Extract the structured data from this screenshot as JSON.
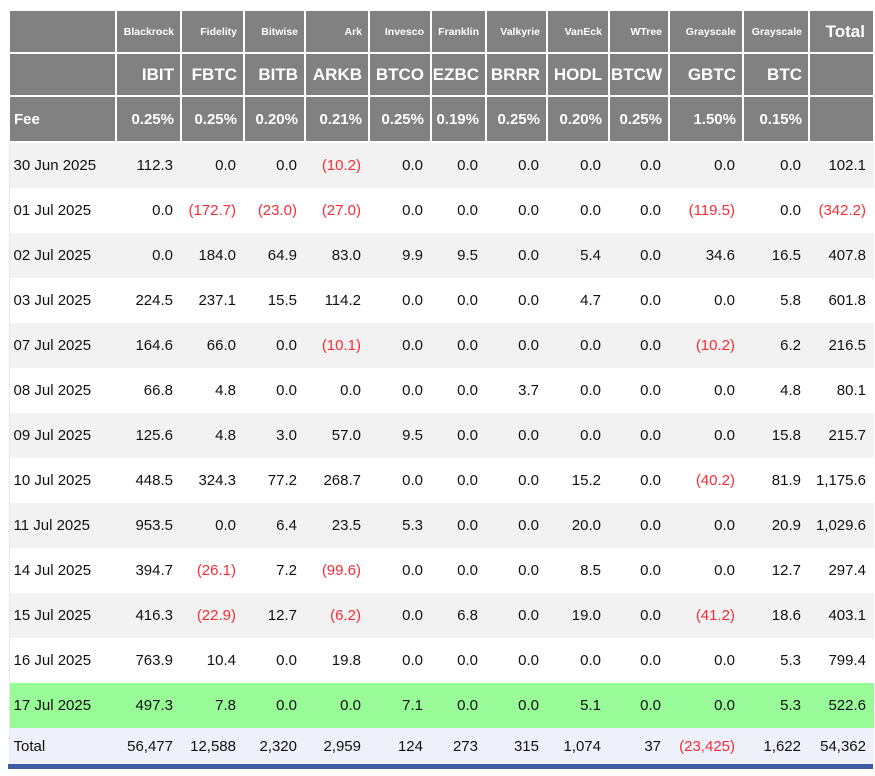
{
  "colors": {
    "header_bg": "#818181",
    "header_text": "#ffffff",
    "row_stripe": "#f2f2f2",
    "highlight_green": "#98fb98",
    "total_row_bg": "#eef1f9",
    "negative_value": "#fb2c36",
    "bottom_bar_blue": "#3d5da9"
  },
  "chart_data": {
    "type": "table",
    "fee_label": "Fee",
    "total_column_label": "Total",
    "total_row_label": "Total",
    "providers": [
      "Blackrock",
      "Fidelity",
      "Bitwise",
      "Ark",
      "Invesco",
      "Franklin",
      "Valkyrie",
      "VanEck",
      "WTree",
      "Grayscale",
      "Grayscale"
    ],
    "tickers": [
      "IBIT",
      "FBTC",
      "BITB",
      "ARKB",
      "BTCO",
      "EZBC",
      "BRRR",
      "HODL",
      "BTCW",
      "GBTC",
      "BTC"
    ],
    "fees": [
      "0.25%",
      "0.25%",
      "0.20%",
      "0.21%",
      "0.25%",
      "0.19%",
      "0.25%",
      "0.20%",
      "0.25%",
      "1.50%",
      "0.15%"
    ],
    "rows": [
      {
        "date": "30 Jun 2025",
        "highlight": false,
        "values": [
          "112.3",
          "0.0",
          "0.0",
          "(10.2)",
          "0.0",
          "0.0",
          "0.0",
          "0.0",
          "0.0",
          "0.0",
          "0.0",
          "102.1"
        ]
      },
      {
        "date": "01 Jul 2025",
        "highlight": false,
        "values": [
          "0.0",
          "(172.7)",
          "(23.0)",
          "(27.0)",
          "0.0",
          "0.0",
          "0.0",
          "0.0",
          "0.0",
          "(119.5)",
          "0.0",
          "(342.2)"
        ]
      },
      {
        "date": "02 Jul 2025",
        "highlight": false,
        "values": [
          "0.0",
          "184.0",
          "64.9",
          "83.0",
          "9.9",
          "9.5",
          "0.0",
          "5.4",
          "0.0",
          "34.6",
          "16.5",
          "407.8"
        ]
      },
      {
        "date": "03 Jul 2025",
        "highlight": false,
        "values": [
          "224.5",
          "237.1",
          "15.5",
          "114.2",
          "0.0",
          "0.0",
          "0.0",
          "4.7",
          "0.0",
          "0.0",
          "5.8",
          "601.8"
        ]
      },
      {
        "date": "07 Jul 2025",
        "highlight": false,
        "values": [
          "164.6",
          "66.0",
          "0.0",
          "(10.1)",
          "0.0",
          "0.0",
          "0.0",
          "0.0",
          "0.0",
          "(10.2)",
          "6.2",
          "216.5"
        ]
      },
      {
        "date": "08 Jul 2025",
        "highlight": false,
        "values": [
          "66.8",
          "4.8",
          "0.0",
          "0.0",
          "0.0",
          "0.0",
          "3.7",
          "0.0",
          "0.0",
          "0.0",
          "4.8",
          "80.1"
        ]
      },
      {
        "date": "09 Jul 2025",
        "highlight": false,
        "values": [
          "125.6",
          "4.8",
          "3.0",
          "57.0",
          "9.5",
          "0.0",
          "0.0",
          "0.0",
          "0.0",
          "0.0",
          "15.8",
          "215.7"
        ]
      },
      {
        "date": "10 Jul 2025",
        "highlight": false,
        "values": [
          "448.5",
          "324.3",
          "77.2",
          "268.7",
          "0.0",
          "0.0",
          "0.0",
          "15.2",
          "0.0",
          "(40.2)",
          "81.9",
          "1,175.6"
        ]
      },
      {
        "date": "11 Jul 2025",
        "highlight": false,
        "values": [
          "953.5",
          "0.0",
          "6.4",
          "23.5",
          "5.3",
          "0.0",
          "0.0",
          "20.0",
          "0.0",
          "0.0",
          "20.9",
          "1,029.6"
        ]
      },
      {
        "date": "14 Jul 2025",
        "highlight": false,
        "values": [
          "394.7",
          "(26.1)",
          "7.2",
          "(99.6)",
          "0.0",
          "0.0",
          "0.0",
          "8.5",
          "0.0",
          "0.0",
          "12.7",
          "297.4"
        ]
      },
      {
        "date": "15 Jul 2025",
        "highlight": false,
        "values": [
          "416.3",
          "(22.9)",
          "12.7",
          "(6.2)",
          "0.0",
          "6.8",
          "0.0",
          "19.0",
          "0.0",
          "(41.2)",
          "18.6",
          "403.1"
        ]
      },
      {
        "date": "16 Jul 2025",
        "highlight": false,
        "values": [
          "763.9",
          "10.4",
          "0.0",
          "19.8",
          "0.0",
          "0.0",
          "0.0",
          "0.0",
          "0.0",
          "0.0",
          "5.3",
          "799.4"
        ]
      },
      {
        "date": "17 Jul 2025",
        "highlight": true,
        "values": [
          "497.3",
          "7.8",
          "0.0",
          "0.0",
          "7.1",
          "0.0",
          "0.0",
          "5.1",
          "0.0",
          "0.0",
          "5.3",
          "522.6"
        ]
      }
    ],
    "total_row": {
      "values": [
        "56,477",
        "12,588",
        "2,320",
        "2,959",
        "124",
        "273",
        "315",
        "1,074",
        "37",
        "(23,425)",
        "1,622",
        "54,362"
      ]
    }
  }
}
